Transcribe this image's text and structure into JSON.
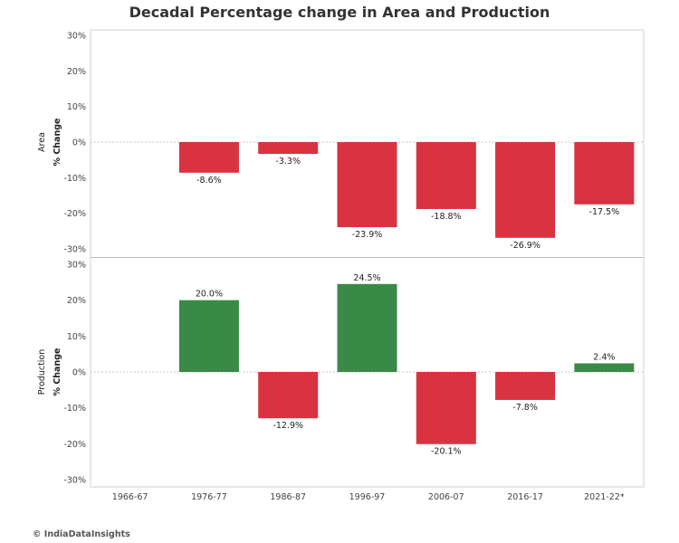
{
  "title": "Decadal Percentage change in Area and Production",
  "footer": "© IndiaDataInsights",
  "colors": {
    "negative": "#d93240",
    "positive": "#3a8a47"
  },
  "chart_data": {
    "type": "bar",
    "title": "Decadal Percentage change in Area and Production",
    "categories": [
      "1966-67",
      "1976-77",
      "1986-87",
      "1996-97",
      "2006-07",
      "2016-17",
      "2021-22*"
    ],
    "ylim": [
      -30,
      30
    ],
    "yticks": [
      -30,
      -20,
      -10,
      0,
      10,
      20,
      30
    ],
    "tick_labels": [
      "-30%",
      "-20%",
      "-10%",
      "0%",
      "10%",
      "20%",
      "30%"
    ],
    "grid": false,
    "series": [
      {
        "name": "Area",
        "ylabel": "% Change",
        "values": [
          null,
          -8.6,
          -3.3,
          -23.9,
          -18.8,
          -26.9,
          -17.5
        ],
        "labels": [
          "",
          "-8.6%",
          "-3.3%",
          "-23.9%",
          "-18.8%",
          "-26.9%",
          "-17.5%"
        ]
      },
      {
        "name": "Production",
        "ylabel": "% Change",
        "values": [
          null,
          20.0,
          -12.9,
          24.5,
          -20.1,
          -7.8,
          2.4
        ],
        "labels": [
          "",
          "20.0%",
          "-12.9%",
          "24.5%",
          "-20.1%",
          "-7.8%",
          "2.4%"
        ]
      }
    ]
  }
}
